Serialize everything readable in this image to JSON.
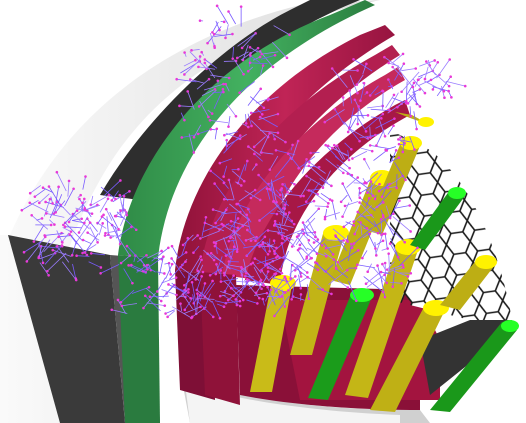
{
  "scene": {
    "kind": "3d-detector-cutaway-render",
    "colors": {
      "background": "#ffffff",
      "outer_shell_light": "#efefef",
      "outer_shell_dark": "#3a3a3a",
      "green_layer": "#3aa356",
      "green_layer_dark": "#247a3c",
      "crimson_layers": "#b51e52",
      "crimson_dark": "#7e0f36",
      "yellow_rods": "#cfc21c",
      "yellow_rod_top": "#fff200",
      "green_rods": "#1ea11e",
      "green_rod_top": "#26ff26",
      "tracks": "#7a5cff",
      "hits": "#e83ad8",
      "hex_grid": "#222222"
    },
    "elements": [
      "outer-shell",
      "green-layer",
      "crimson-layers",
      "hex-grid",
      "yellow-rods",
      "green-rods",
      "particle-tracks"
    ]
  }
}
